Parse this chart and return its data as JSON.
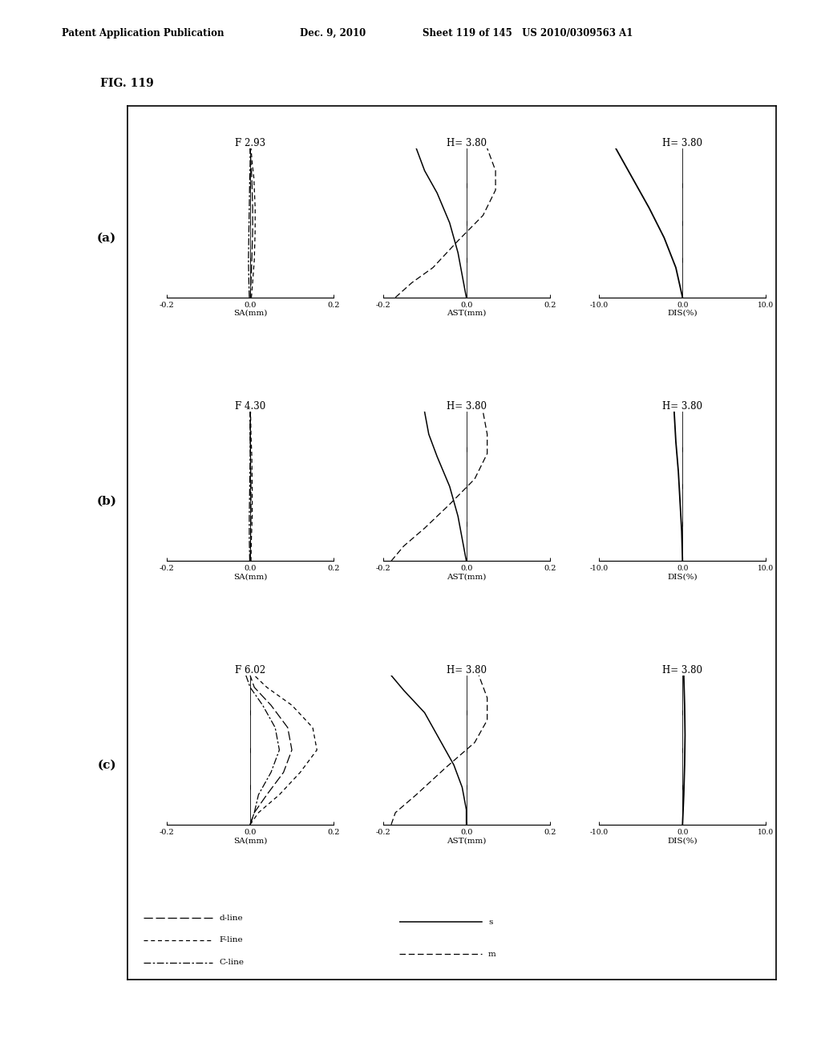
{
  "fig_label": "FIG. 119",
  "header_left": "Patent Application Publication",
  "header_center": "Dec. 9, 2010",
  "header_right": "Sheet 119 of 145   US 2010/0309563 A1",
  "rows": [
    {
      "row_label": "(a)",
      "sa_title": "F 2.93",
      "ast_title": "H= 3.80",
      "dis_title": "H= 3.80",
      "sa": {
        "d_line": [
          [
            0.0,
            0.0
          ],
          [
            0.002,
            0.1
          ],
          [
            0.004,
            0.25
          ],
          [
            0.006,
            0.45
          ],
          [
            0.006,
            0.6
          ],
          [
            0.004,
            0.8
          ],
          [
            0.002,
            0.9
          ],
          [
            0.0,
            1.0
          ]
        ],
        "f_line": [
          [
            0.003,
            0.0
          ],
          [
            0.006,
            0.1
          ],
          [
            0.01,
            0.25
          ],
          [
            0.012,
            0.45
          ],
          [
            0.012,
            0.6
          ],
          [
            0.009,
            0.8
          ],
          [
            0.005,
            0.9
          ],
          [
            0.002,
            1.0
          ]
        ],
        "c_line": [
          [
            -0.002,
            0.0
          ],
          [
            -0.003,
            0.1
          ],
          [
            -0.004,
            0.25
          ],
          [
            -0.003,
            0.45
          ],
          [
            -0.002,
            0.6
          ],
          [
            -0.001,
            0.8
          ],
          [
            0.0,
            0.9
          ],
          [
            0.0,
            1.0
          ]
        ]
      },
      "ast": {
        "s_line": [
          [
            0.0,
            0.0
          ],
          [
            -0.01,
            0.15
          ],
          [
            -0.02,
            0.3
          ],
          [
            -0.04,
            0.5
          ],
          [
            -0.07,
            0.7
          ],
          [
            -0.1,
            0.85
          ],
          [
            -0.12,
            1.0
          ]
        ],
        "m_line": [
          [
            -0.17,
            0.0
          ],
          [
            -0.13,
            0.1
          ],
          [
            -0.08,
            0.2
          ],
          [
            -0.02,
            0.38
          ],
          [
            0.04,
            0.55
          ],
          [
            0.07,
            0.72
          ],
          [
            0.07,
            0.85
          ],
          [
            0.05,
            1.0
          ]
        ]
      },
      "dis": {
        "line": [
          [
            0.0,
            0.0
          ],
          [
            -0.8,
            0.2
          ],
          [
            -2.2,
            0.4
          ],
          [
            -4.0,
            0.6
          ],
          [
            -6.0,
            0.8
          ],
          [
            -8.0,
            1.0
          ]
        ]
      }
    },
    {
      "row_label": "(b)",
      "sa_title": "F 4.30",
      "ast_title": "H= 3.80",
      "dis_title": "H= 3.80",
      "sa": {
        "d_line": [
          [
            0.0,
            0.0
          ],
          [
            0.001,
            0.15
          ],
          [
            0.002,
            0.3
          ],
          [
            0.002,
            0.5
          ],
          [
            0.001,
            0.7
          ],
          [
            0.0,
            0.85
          ],
          [
            0.0,
            1.0
          ]
        ],
        "f_line": [
          [
            0.002,
            0.0
          ],
          [
            0.003,
            0.15
          ],
          [
            0.005,
            0.3
          ],
          [
            0.005,
            0.5
          ],
          [
            0.004,
            0.7
          ],
          [
            0.002,
            0.85
          ],
          [
            0.001,
            1.0
          ]
        ],
        "c_line": [
          [
            -0.001,
            0.0
          ],
          [
            -0.002,
            0.15
          ],
          [
            -0.002,
            0.3
          ],
          [
            -0.001,
            0.5
          ],
          [
            0.0,
            0.7
          ],
          [
            0.0,
            0.85
          ],
          [
            0.0,
            1.0
          ]
        ]
      },
      "ast": {
        "s_line": [
          [
            0.0,
            0.0
          ],
          [
            -0.01,
            0.15
          ],
          [
            -0.02,
            0.3
          ],
          [
            -0.04,
            0.5
          ],
          [
            -0.07,
            0.7
          ],
          [
            -0.09,
            0.85
          ],
          [
            -0.1,
            1.0
          ]
        ],
        "m_line": [
          [
            -0.18,
            0.0
          ],
          [
            -0.15,
            0.1
          ],
          [
            -0.1,
            0.22
          ],
          [
            -0.04,
            0.38
          ],
          [
            0.02,
            0.55
          ],
          [
            0.05,
            0.72
          ],
          [
            0.05,
            0.85
          ],
          [
            0.04,
            1.0
          ]
        ]
      },
      "dis": {
        "line": [
          [
            0.0,
            0.0
          ],
          [
            -0.1,
            0.2
          ],
          [
            -0.3,
            0.4
          ],
          [
            -0.5,
            0.6
          ],
          [
            -0.8,
            0.8
          ],
          [
            -1.0,
            1.0
          ]
        ]
      }
    },
    {
      "row_label": "(c)",
      "sa_title": "F 6.02",
      "ast_title": "H= 3.80",
      "dis_title": "H= 3.80",
      "sa": {
        "d_line": [
          [
            0.0,
            0.0
          ],
          [
            0.01,
            0.08
          ],
          [
            0.04,
            0.2
          ],
          [
            0.08,
            0.35
          ],
          [
            0.1,
            0.5
          ],
          [
            0.09,
            0.65
          ],
          [
            0.05,
            0.8
          ],
          [
            0.01,
            0.92
          ],
          [
            0.0,
            1.0
          ]
        ],
        "f_line": [
          [
            0.0,
            0.0
          ],
          [
            0.02,
            0.08
          ],
          [
            0.07,
            0.2
          ],
          [
            0.12,
            0.35
          ],
          [
            0.16,
            0.5
          ],
          [
            0.15,
            0.65
          ],
          [
            0.1,
            0.8
          ],
          [
            0.04,
            0.92
          ],
          [
            0.01,
            1.0
          ]
        ],
        "c_line": [
          [
            0.0,
            0.0
          ],
          [
            0.01,
            0.08
          ],
          [
            0.02,
            0.2
          ],
          [
            0.05,
            0.35
          ],
          [
            0.07,
            0.5
          ],
          [
            0.06,
            0.65
          ],
          [
            0.03,
            0.8
          ],
          [
            0.0,
            0.92
          ],
          [
            -0.01,
            1.0
          ]
        ]
      },
      "ast": {
        "s_line": [
          [
            0.0,
            0.0
          ],
          [
            0.0,
            0.1
          ],
          [
            -0.01,
            0.25
          ],
          [
            -0.03,
            0.4
          ],
          [
            -0.07,
            0.6
          ],
          [
            -0.1,
            0.75
          ],
          [
            -0.15,
            0.9
          ],
          [
            -0.18,
            1.0
          ]
        ],
        "m_line": [
          [
            -0.18,
            0.0
          ],
          [
            -0.17,
            0.08
          ],
          [
            -0.12,
            0.2
          ],
          [
            -0.05,
            0.38
          ],
          [
            0.02,
            0.55
          ],
          [
            0.05,
            0.7
          ],
          [
            0.05,
            0.85
          ],
          [
            0.03,
            1.0
          ]
        ]
      },
      "dis": {
        "line": [
          [
            0.0,
            0.0
          ],
          [
            0.15,
            0.2
          ],
          [
            0.25,
            0.4
          ],
          [
            0.3,
            0.6
          ],
          [
            0.25,
            0.8
          ],
          [
            0.15,
            1.0
          ]
        ]
      }
    }
  ],
  "background_color": "#ffffff"
}
